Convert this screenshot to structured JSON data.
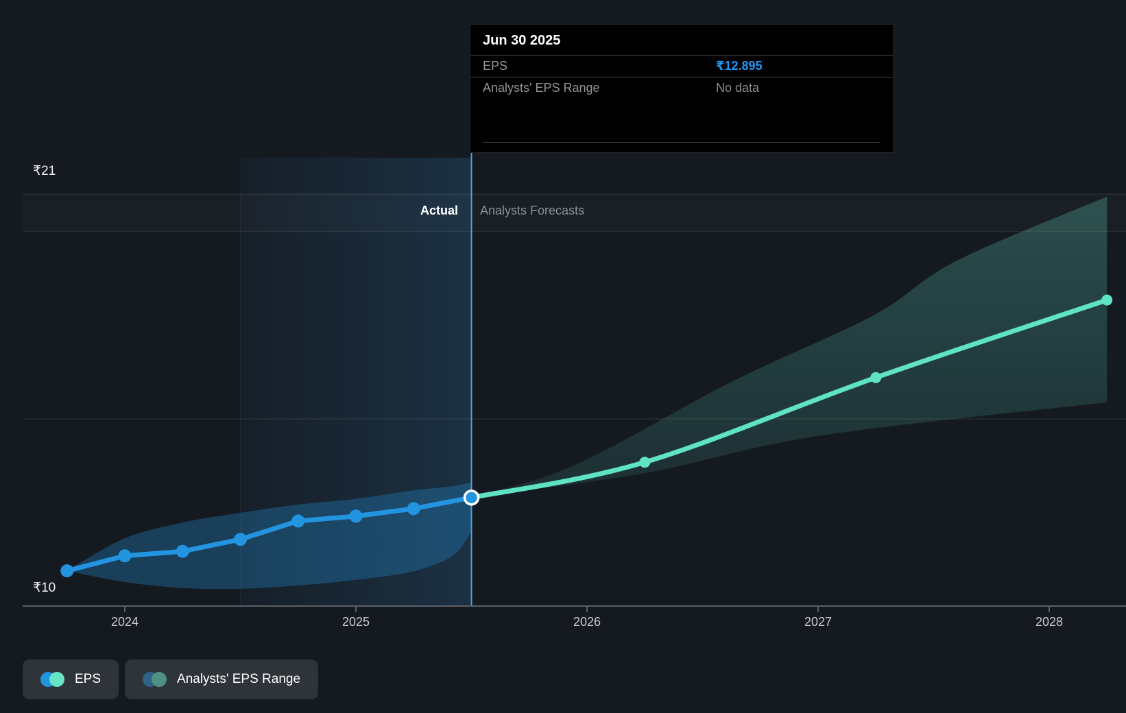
{
  "tooltip": {
    "date": "Jun 30 2025",
    "rows": [
      {
        "label": "EPS",
        "value": "₹12.895",
        "style": "blue"
      },
      {
        "label": "Analysts' EPS Range",
        "value": "No data",
        "style": "muted"
      }
    ]
  },
  "y_axis": {
    "max_label": "₹21",
    "min_label": "₹10"
  },
  "x_axis": {
    "ticks": [
      "2024",
      "2025",
      "2026",
      "2027",
      "2028"
    ]
  },
  "annotations": {
    "actual": "Actual",
    "forecast": "Analysts Forecasts"
  },
  "legend": [
    {
      "label": "EPS",
      "colors": [
        "#2394df",
        "#67e4c6"
      ]
    },
    {
      "label": "Analysts' EPS Range",
      "colors": [
        "#306288",
        "#4f9187"
      ]
    }
  ],
  "colors": {
    "background": "#151a21",
    "eps_actual_line": "#2394df",
    "eps_forecast_line": "#5fe3c3",
    "actual_band_fill": "rgba(35,148,223,0.30)",
    "forecast_band_fill_top": "rgba(100,226,199,0.26)",
    "forecast_band_fill_bottom": "rgba(100,226,199,0.10)",
    "divider": "#4da3dc",
    "gridline": "rgba(255,255,255,0.08)",
    "axis_line": "#5b6066",
    "tooltip_value_blue": "#2196f3"
  },
  "chart_data": {
    "type": "line",
    "title": "EPS actual vs analysts forecasts",
    "currency": "₹",
    "ylim": [
      10,
      21
    ],
    "gridline_values": [
      21,
      20,
      15
    ],
    "x_tick_years": [
      2024,
      2025,
      2026,
      2027,
      2028
    ],
    "divider_x": 2025.5,
    "highlight_region": {
      "from_x": 2024.5,
      "to_x": 2025.5
    },
    "series": [
      {
        "name": "EPS (actual)",
        "dates": [
          "Sep 30 2023",
          "Dec 31 2023",
          "Mar 31 2024",
          "Jun 30 2024",
          "Sep 30 2024",
          "Dec 31 2024",
          "Mar 31 2025",
          "Jun 30 2025"
        ],
        "x": [
          2023.75,
          2024.0,
          2024.25,
          2024.5,
          2024.75,
          2025.0,
          2025.25,
          2025.5
        ],
        "values": [
          10.94,
          11.34,
          11.46,
          11.78,
          12.27,
          12.4,
          12.6,
          12.895
        ]
      },
      {
        "name": "EPS (analysts forecast)",
        "dates": [
          "Jun 30 2025",
          "Mar 31 2026",
          "Mar 31 2027",
          "Mar 31 2028"
        ],
        "x": [
          2025.5,
          2026.25,
          2027.25,
          2028.25
        ],
        "values": [
          12.895,
          13.84,
          16.1,
          18.17
        ]
      }
    ],
    "bands": [
      {
        "name": "actual EPS range band",
        "top": {
          "x": [
            2023.75,
            2024.0,
            2024.25,
            2024.5,
            2024.75,
            2025.0,
            2025.25,
            2025.42,
            2025.5
          ],
          "values": [
            10.94,
            11.81,
            12.23,
            12.49,
            12.71,
            12.86,
            13.09,
            13.2,
            13.31
          ]
        },
        "bottom": {
          "x": [
            2023.75,
            2024.0,
            2024.25,
            2024.5,
            2024.75,
            2025.0,
            2025.25,
            2025.42,
            2025.5
          ],
          "values": [
            10.94,
            10.64,
            10.48,
            10.46,
            10.55,
            10.7,
            10.93,
            11.35,
            12.0
          ]
        }
      },
      {
        "name": "analysts EPS range band",
        "top": {
          "x": [
            2025.5,
            2025.95,
            2026.63,
            2027.24,
            2027.6,
            2028.25
          ],
          "values": [
            12.895,
            13.77,
            16.0,
            17.76,
            19.22,
            20.93
          ]
        },
        "bottom": {
          "x": [
            2025.5,
            2026.25,
            2027.0,
            2028.25
          ],
          "values": [
            12.895,
            13.55,
            14.54,
            15.44
          ]
        }
      }
    ],
    "legend_position": "bottom-left",
    "grid": true
  }
}
